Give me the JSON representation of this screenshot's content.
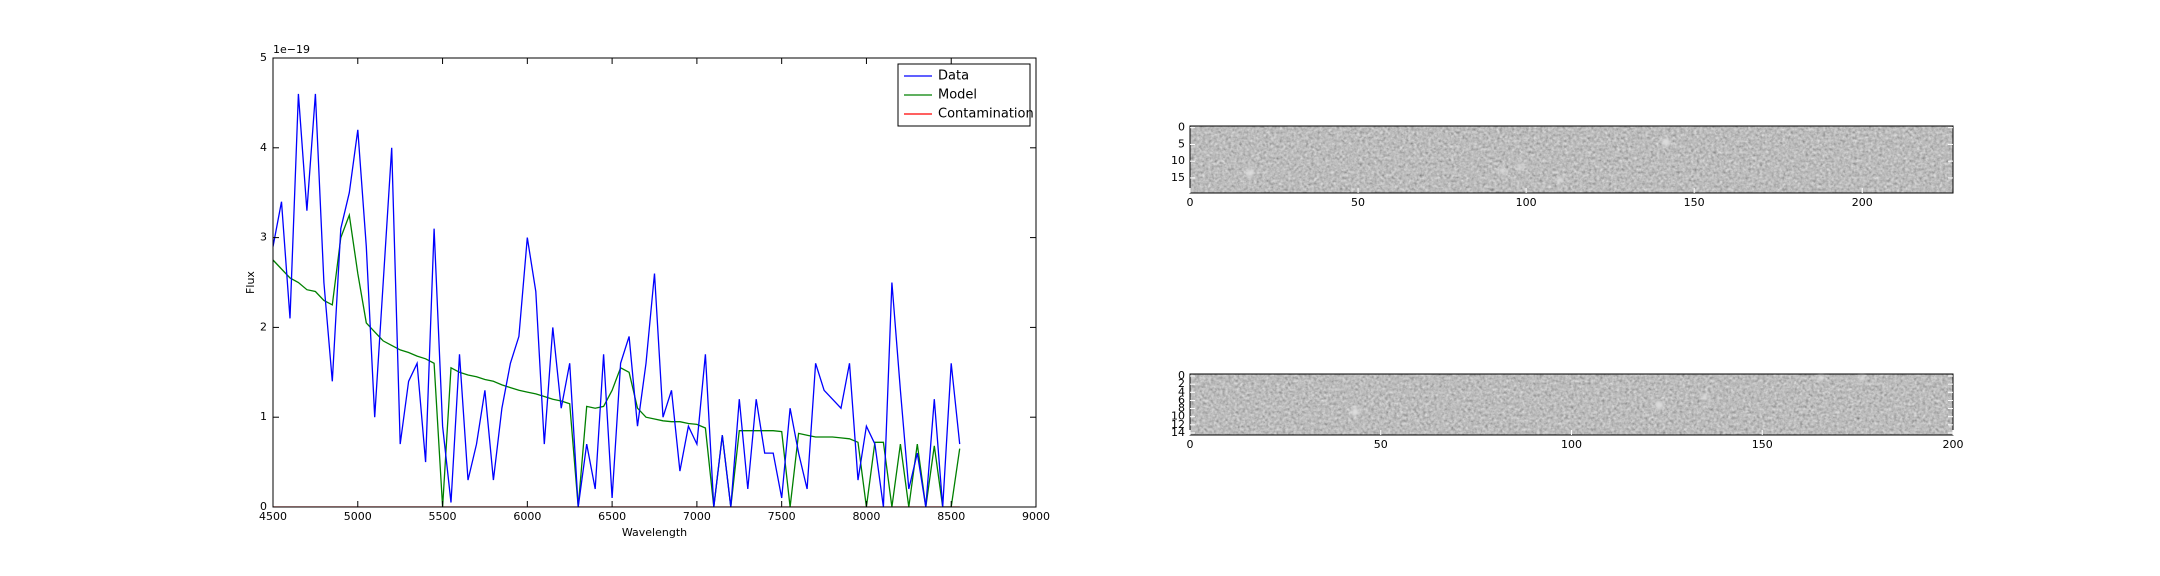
{
  "chart_data": [
    {
      "type": "line",
      "xlabel": "Wavelength",
      "ylabel": "Flux",
      "offset_text": "1e−19",
      "x": [
        4500,
        4550,
        4600,
        4650,
        4700,
        4750,
        4800,
        4850,
        4900,
        4950,
        5000,
        5050,
        5100,
        5150,
        5200,
        5250,
        5300,
        5350,
        5400,
        5450,
        5500,
        5550,
        5600,
        5650,
        5700,
        5750,
        5800,
        5850,
        5900,
        5950,
        6000,
        6050,
        6100,
        6150,
        6200,
        6250,
        6300,
        6350,
        6400,
        6450,
        6500,
        6550,
        6600,
        6650,
        6700,
        6750,
        6800,
        6850,
        6900,
        6950,
        7000,
        7050,
        7100,
        7150,
        7200,
        7250,
        7300,
        7350,
        7400,
        7450,
        7500,
        7550,
        7600,
        7650,
        7700,
        7750,
        7800,
        7850,
        7900,
        7950,
        8000,
        8050,
        8100,
        8150,
        8200,
        8250,
        8300,
        8350,
        8400,
        8450,
        8500,
        8550
      ],
      "series": [
        {
          "name": "Data",
          "color": "#0000ff",
          "values": [
            2.9,
            3.4,
            2.1,
            4.6,
            3.3,
            4.6,
            2.5,
            1.4,
            3.1,
            3.5,
            4.2,
            2.9,
            1.0,
            2.5,
            4.0,
            0.7,
            1.4,
            1.6,
            0.5,
            3.1,
            0.9,
            0.05,
            1.7,
            0.3,
            0.7,
            1.3,
            0.3,
            1.1,
            1.6,
            1.9,
            3.0,
            2.4,
            0.7,
            2.0,
            1.1,
            1.6,
            0.0,
            0.7,
            0.2,
            1.7,
            0.1,
            1.6,
            1.9,
            0.9,
            1.6,
            2.6,
            1.0,
            1.3,
            0.4,
            0.9,
            0.7,
            1.7,
            0.0,
            0.8,
            0.0,
            1.2,
            0.2,
            1.2,
            0.6,
            0.6,
            0.1,
            1.1,
            0.6,
            0.2,
            1.6,
            1.3,
            1.2,
            1.1,
            1.6,
            0.3,
            0.9,
            0.7,
            0.0,
            2.5,
            1.3,
            0.2,
            0.6,
            0.0,
            1.2,
            0.0,
            1.6,
            0.7
          ]
        },
        {
          "name": "Model",
          "color": "#008000",
          "values": [
            2.75,
            2.65,
            2.55,
            2.5,
            2.42,
            2.4,
            2.3,
            2.25,
            3.0,
            3.25,
            2.6,
            2.05,
            1.95,
            1.85,
            1.8,
            1.75,
            1.72,
            1.68,
            1.65,
            1.6,
            0.0,
            1.55,
            1.5,
            1.47,
            1.45,
            1.42,
            1.4,
            1.36,
            1.33,
            1.3,
            1.28,
            1.26,
            1.23,
            1.2,
            1.18,
            1.15,
            0.0,
            1.12,
            1.1,
            1.12,
            1.3,
            1.55,
            1.5,
            1.1,
            1.0,
            0.98,
            0.96,
            0.95,
            0.95,
            0.93,
            0.92,
            0.88,
            0.0,
            0.8,
            0.0,
            0.85,
            0.85,
            0.85,
            0.85,
            0.85,
            0.84,
            0.0,
            0.82,
            0.8,
            0.78,
            0.78,
            0.78,
            0.77,
            0.76,
            0.72,
            0.0,
            0.72,
            0.72,
            0.0,
            0.7,
            0.0,
            0.7,
            0.0,
            0.68,
            0.0,
            0.0,
            0.65
          ]
        },
        {
          "name": "Contamination",
          "color": "#ff0000",
          "values": [
            0,
            0,
            0,
            0,
            0,
            0,
            0,
            0,
            0,
            0,
            0,
            0,
            0,
            0,
            0,
            0,
            0,
            0,
            0,
            0,
            0,
            0,
            0,
            0,
            0,
            0,
            0,
            0,
            0,
            0,
            0,
            0,
            0,
            0,
            0,
            0,
            0,
            0,
            0,
            0,
            0,
            0,
            0,
            0,
            0,
            0,
            0,
            0,
            0,
            0,
            0,
            0,
            0,
            0,
            0,
            0,
            0,
            0,
            0,
            0,
            0,
            0,
            0,
            0,
            0,
            0,
            0,
            0,
            0,
            0,
            0,
            0,
            0,
            0,
            0,
            0,
            0,
            0,
            0,
            0,
            0,
            0
          ]
        }
      ],
      "xlim": [
        4500,
        9000
      ],
      "xticks": [
        4500,
        5000,
        5500,
        6000,
        6500,
        7000,
        7500,
        8000,
        8500,
        9000
      ],
      "ylim": [
        0,
        5
      ],
      "yticks": [
        0,
        1,
        2,
        3,
        4,
        5
      ],
      "legend": "upper right"
    },
    {
      "type": "image",
      "xlim": [
        0,
        227
      ],
      "xticks": [
        0,
        50,
        100,
        150,
        200
      ],
      "ylim": [
        19.5,
        -0.5
      ],
      "yticks": [
        0,
        5,
        10,
        15
      ]
    },
    {
      "type": "image",
      "xlim": [
        0,
        200
      ],
      "xticks": [
        0,
        50,
        100,
        150,
        200
      ],
      "ylim": [
        14.5,
        -0.5
      ],
      "yticks": [
        0,
        2,
        4,
        6,
        8,
        10,
        12,
        14
      ]
    }
  ]
}
